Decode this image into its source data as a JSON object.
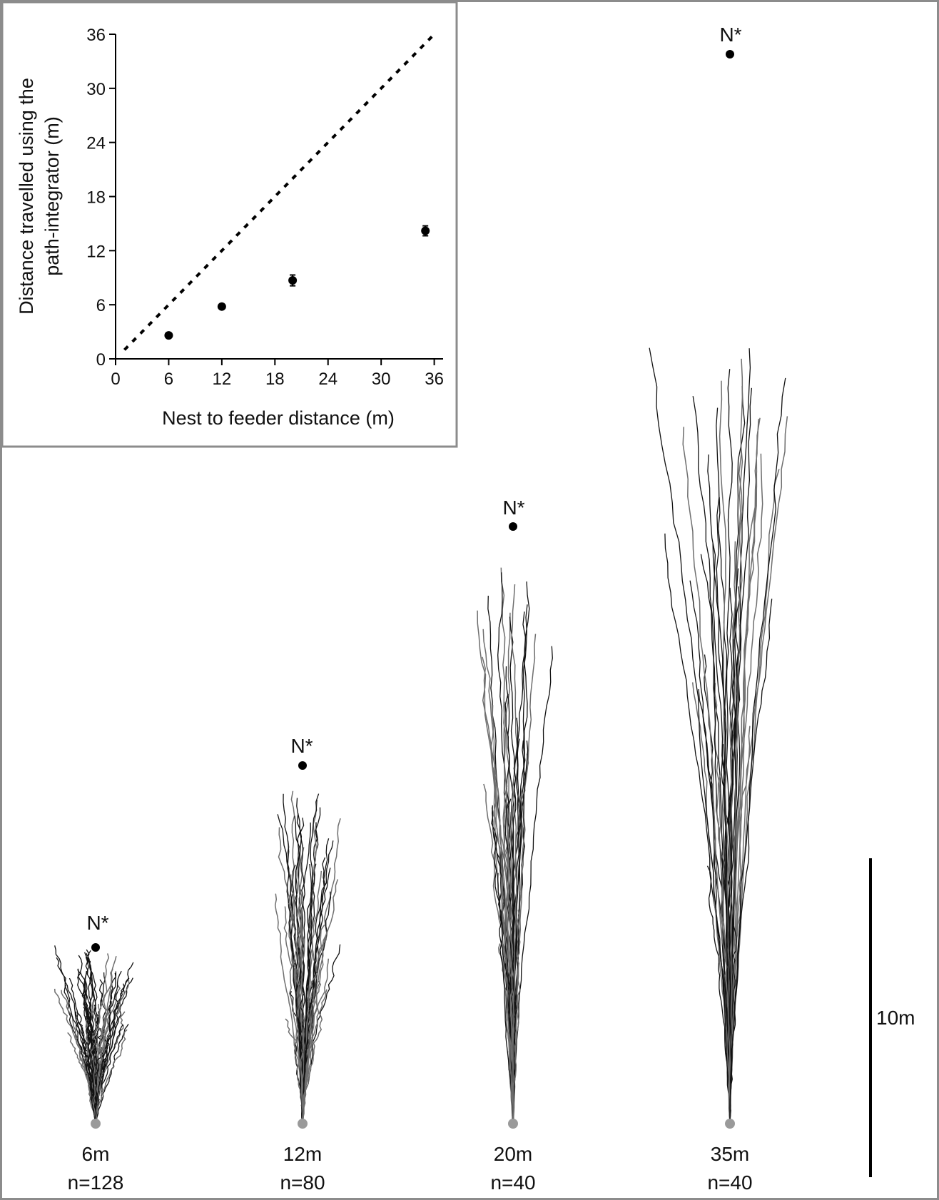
{
  "chart_data": [
    {
      "type": "scatter",
      "xlabel": "Nest to feeder distance (m)",
      "ylabel": [
        "Distance travelled using the",
        "path-integrator (m)"
      ],
      "xlim": [
        0,
        37
      ],
      "ylim": [
        0,
        36
      ],
      "xticks": [
        "0",
        "6",
        "12",
        "18",
        "24",
        "30",
        "36"
      ],
      "yticks": [
        "0",
        "6",
        "12",
        "18",
        "24",
        "30",
        "36"
      ],
      "grid": false,
      "reference_line": {
        "style": "dashed",
        "x": [
          1,
          36
        ],
        "y": [
          1,
          36
        ]
      },
      "points": [
        {
          "x": 6,
          "y": 2.6,
          "err": 0
        },
        {
          "x": 12,
          "y": 5.8,
          "err": 0
        },
        {
          "x": 20,
          "y": 8.7,
          "err": 0.6
        },
        {
          "x": 35,
          "y": 14.2,
          "err": 0.55
        }
      ],
      "colors": {
        "points": "#000000",
        "axes": "#000000",
        "frame": "#8c8c8c"
      }
    },
    {
      "type": "other",
      "description_kind": "path-tracks",
      "groups": [
        {
          "distance_label": "6m",
          "n_label": "n=128",
          "nest_label": "N*",
          "feeder_distance_m": 6,
          "n": 128,
          "run_length_m": 2.6
        },
        {
          "distance_label": "12m",
          "n_label": "n=80",
          "nest_label": "N*",
          "feeder_distance_m": 12,
          "n": 80,
          "run_length_m": 5.8
        },
        {
          "distance_label": "20m",
          "n_label": "n=40",
          "nest_label": "N*",
          "feeder_distance_m": 20,
          "n": 40,
          "run_length_m": 8.7
        },
        {
          "distance_label": "35m",
          "n_label": "n=40",
          "nest_label": "N*",
          "feeder_distance_m": 35,
          "n": 40,
          "run_length_m": 14.2
        }
      ],
      "scale_bar": {
        "label": "10m",
        "length_m": 10
      },
      "colors": {
        "track_dark": "#111111",
        "track_light": "#6e6e6e",
        "start_marker": "#9a9a9a",
        "nest_marker": "#000000"
      }
    }
  ]
}
